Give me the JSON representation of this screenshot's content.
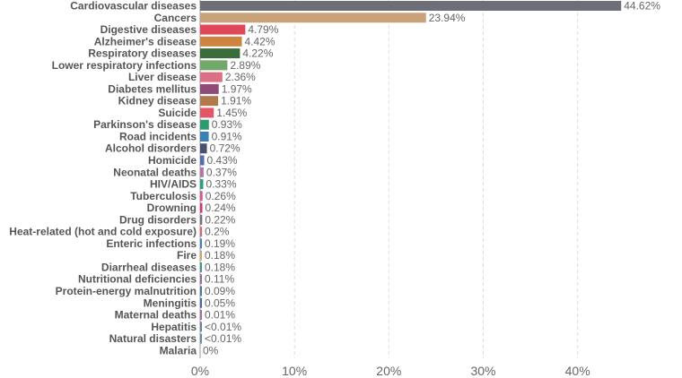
{
  "chart_data": {
    "type": "bar",
    "orientation": "horizontal",
    "title": "",
    "xlabel": "",
    "ylabel": "",
    "xlim": [
      0,
      46.5
    ],
    "x_ticks": [
      {
        "value": 0,
        "label": "0%"
      },
      {
        "value": 10,
        "label": "10%"
      },
      {
        "value": 20,
        "label": "20%"
      },
      {
        "value": 30,
        "label": "30%"
      },
      {
        "value": 40,
        "label": "40%"
      }
    ],
    "grid": "vertical dashed",
    "categories": [
      "Cardiovascular diseases",
      "Cancers",
      "Digestive diseases",
      "Alzheimer's disease",
      "Respiratory diseases",
      "Lower respiratory infections",
      "Liver disease",
      "Diabetes mellitus",
      "Kidney disease",
      "Suicide",
      "Parkinson's disease",
      "Road incidents",
      "Alcohol disorders",
      "Homicide",
      "Neonatal deaths",
      "HIV/AIDS",
      "Tuberculosis",
      "Drowning",
      "Drug disorders",
      "Heat-related (hot and cold exposure)",
      "Enteric infections",
      "Fire",
      "Diarrheal diseases",
      "Nutritional deficiencies",
      "Protein-energy malnutrition",
      "Meningitis",
      "Maternal deaths",
      "Hepatitis",
      "Natural disasters",
      "Malaria"
    ],
    "values": [
      44.62,
      23.94,
      4.79,
      4.42,
      4.22,
      2.89,
      2.36,
      1.97,
      1.91,
      1.45,
      0.93,
      0.91,
      0.72,
      0.43,
      0.37,
      0.33,
      0.26,
      0.24,
      0.22,
      0.2,
      0.19,
      0.18,
      0.18,
      0.11,
      0.09,
      0.05,
      0.01,
      0.004,
      0.004,
      0
    ],
    "value_labels": [
      "44.62%",
      "23.94%",
      "4.79%",
      "4.42%",
      "4.22%",
      "2.89%",
      "2.36%",
      "1.97%",
      "1.91%",
      "1.45%",
      "0.93%",
      "0.91%",
      "0.72%",
      "0.43%",
      "0.37%",
      "0.33%",
      "0.26%",
      "0.24%",
      "0.22%",
      "0.2%",
      "0.19%",
      "0.18%",
      "0.18%",
      "0.11%",
      "0.09%",
      "0.05%",
      "0.01%",
      "<0.01%",
      "<0.01%",
      "0%"
    ],
    "colors": [
      "#6e6e78",
      "#c9a27a",
      "#e0485a",
      "#cc8440",
      "#3a6b3a",
      "#72a86a",
      "#db7085",
      "#8f4a78",
      "#b07a4a",
      "#e25668",
      "#2f9a6e",
      "#3a7fb5",
      "#4a4f6e",
      "#4f6fb0",
      "#b373a8",
      "#2a9e7e",
      "#d65690",
      "#d4357a",
      "#7a6a8a",
      "#e06070",
      "#3f7fcf",
      "#d4a070",
      "#3a9a8a",
      "#9a6a9a",
      "#4a7a9a",
      "#3a6ab0",
      "#a86aa0",
      "#7a7a9a",
      "#6a8aaa",
      "#c07070"
    ]
  }
}
